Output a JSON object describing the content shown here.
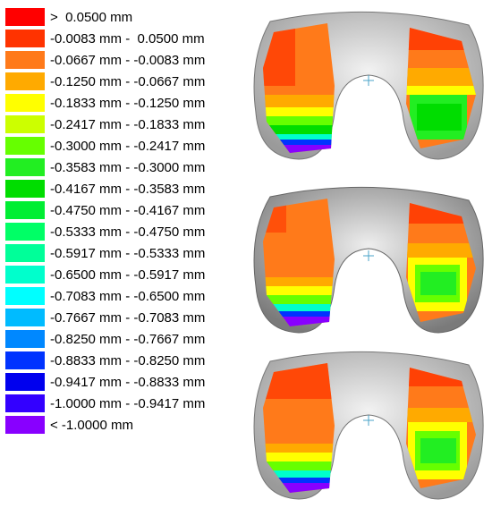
{
  "legend": [
    {
      "label": ">  0.0500 mm",
      "color": "#FF0000"
    },
    {
      "label": "-0.0083 mm -  0.0500 mm",
      "color": "#FF3300"
    },
    {
      "label": "-0.0667 mm - -0.0083 mm",
      "color": "#FF7A1A"
    },
    {
      "label": "-0.1250 mm - -0.0667 mm",
      "color": "#FFAA00"
    },
    {
      "label": "-0.1833 mm - -0.1250 mm",
      "color": "#FFFF00"
    },
    {
      "label": "-0.2417 mm - -0.1833 mm",
      "color": "#CCFF00"
    },
    {
      "label": "-0.3000 mm - -0.2417 mm",
      "color": "#66FF00"
    },
    {
      "label": "-0.3583 mm - -0.3000 mm",
      "color": "#22EE22"
    },
    {
      "label": "-0.4167 mm - -0.3583 mm",
      "color": "#00DD00"
    },
    {
      "label": "-0.4750 mm - -0.4167 mm",
      "color": "#00EE33"
    },
    {
      "label": "-0.5333 mm - -0.4750 mm",
      "color": "#00FF66"
    },
    {
      "label": "-0.5917 mm - -0.5333 mm",
      "color": "#00FF99"
    },
    {
      "label": "-0.6500 mm - -0.5917 mm",
      "color": "#00FFCC"
    },
    {
      "label": "-0.7083 mm - -0.6500 mm",
      "color": "#00FFFF"
    },
    {
      "label": "-0.7667 mm - -0.7083 mm",
      "color": "#00BBFF"
    },
    {
      "label": "-0.8250 mm - -0.7667 mm",
      "color": "#0088FF"
    },
    {
      "label": "-0.8833 mm - -0.8250 mm",
      "color": "#0033FF"
    },
    {
      "label": "-0.9417 mm - -0.8833 mm",
      "color": "#0000EE"
    },
    {
      "label": "-1.0000 mm - -0.9417 mm",
      "color": "#3300FF"
    },
    {
      "label": "< -1.0000 mm",
      "color": "#8800FF"
    }
  ]
}
